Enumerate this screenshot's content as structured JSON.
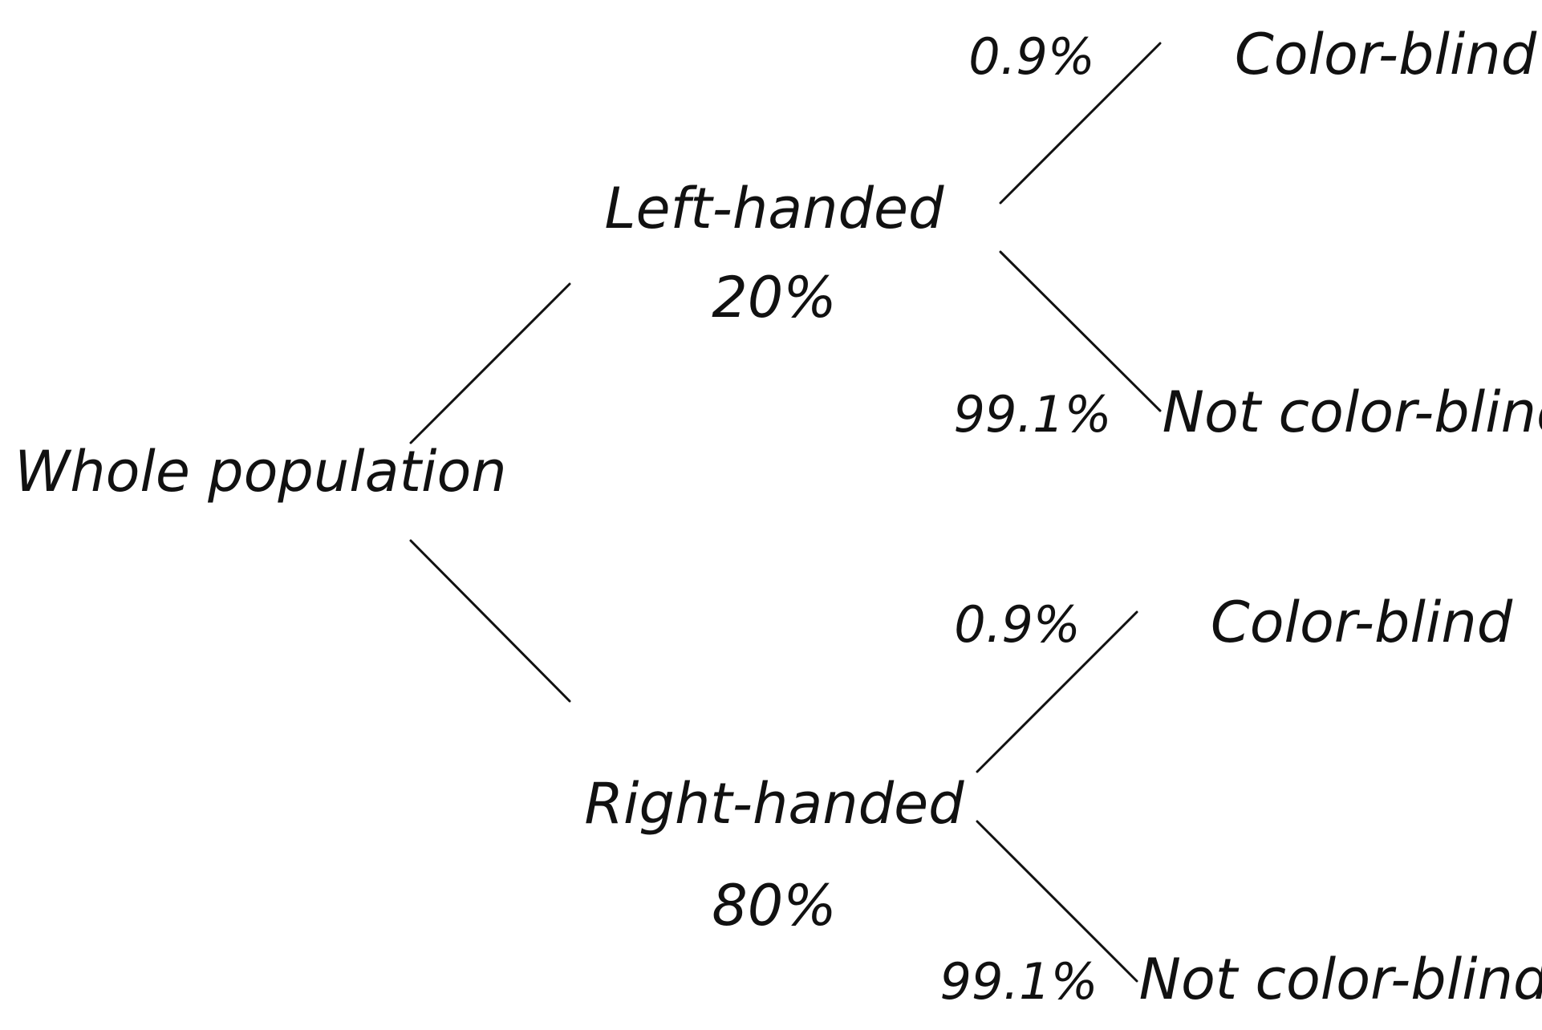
{
  "diagram": {
    "root": "Whole population",
    "left": {
      "label": "Left-handed",
      "percent": "20%",
      "color_blind_pct": "0.9%",
      "color_blind_label": "Color-blind",
      "not_color_blind_pct": "99.1%",
      "not_color_blind_label": "Not color-blind"
    },
    "right": {
      "label": "Right-handed",
      "percent": "80%",
      "color_blind_pct": "0.9%",
      "color_blind_label": "Color-blind",
      "not_color_blind_pct": "99.1%",
      "not_color_blind_label": "Not color-blind"
    }
  }
}
